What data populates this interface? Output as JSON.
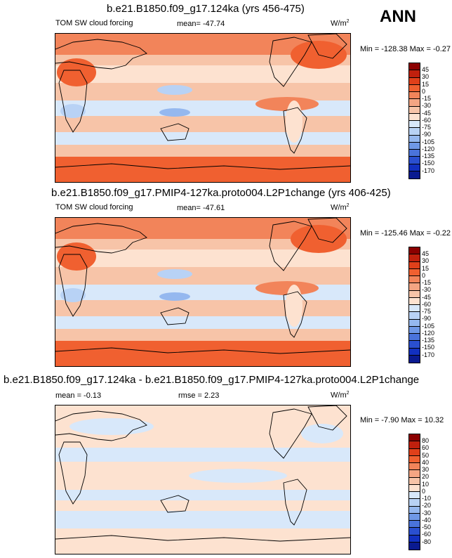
{
  "season": "ANN",
  "panels": [
    {
      "title": "b.e21.B1850.f09_g17.124ka (yrs 456-475)",
      "left_label": "TOM SW cloud forcing",
      "center_label": "mean= -47.74",
      "units_base": "W/m",
      "units_exp": "2",
      "minmax": "Min = -128.38 Max =  -0.27",
      "colorbar": {
        "labels": [
          "45",
          "30",
          "15",
          "0",
          "-15",
          "-30",
          "-45",
          "-60",
          "-75",
          "-90",
          "-105",
          "-120",
          "-135",
          "-150",
          "-170"
        ],
        "colors": [
          "#8b0000",
          "#c0200d",
          "#e0401a",
          "#f06030",
          "#f2845a",
          "#f4a583",
          "#f7c4a8",
          "#fde2d0",
          "#d8e8fa",
          "#b8d2f5",
          "#95b8ef",
          "#6f98e6",
          "#4a73db",
          "#2a4fd0",
          "#1230c0",
          "#0a1a90"
        ]
      }
    },
    {
      "title": "b.e21.B1850.f09_g17.PMIP4-127ka.proto004.L2P1change (yrs 406-425)",
      "left_label": "TOM SW cloud forcing",
      "center_label": "mean= -47.61",
      "units_base": "W/m",
      "units_exp": "2",
      "minmax": "Min = -125.46 Max =  -0.22",
      "colorbar": {
        "labels": [
          "45",
          "30",
          "15",
          "0",
          "-15",
          "-30",
          "-45",
          "-60",
          "-75",
          "-90",
          "-105",
          "-120",
          "-135",
          "-150",
          "-170"
        ],
        "colors": [
          "#8b0000",
          "#c0200d",
          "#e0401a",
          "#f06030",
          "#f2845a",
          "#f4a583",
          "#f7c4a8",
          "#fde2d0",
          "#d8e8fa",
          "#b8d2f5",
          "#95b8ef",
          "#6f98e6",
          "#4a73db",
          "#2a4fd0",
          "#1230c0",
          "#0a1a90"
        ]
      }
    },
    {
      "title": "b.e21.B1850.f09_g17.124ka - b.e21.B1850.f09_g17.PMIP4-127ka.proto004.L2P1change",
      "left_label": "mean =  -0.13",
      "center_label": "rmse =   2.23",
      "units_base": "W/m",
      "units_exp": "2",
      "minmax": "Min =  -7.90 Max =  10.32",
      "colorbar": {
        "labels": [
          "80",
          "60",
          "50",
          "40",
          "30",
          "20",
          "10",
          "0",
          "-10",
          "-20",
          "-30",
          "-40",
          "-50",
          "-60",
          "-80"
        ],
        "colors": [
          "#8b0000",
          "#c0200d",
          "#e0401a",
          "#f06030",
          "#f2845a",
          "#f4a583",
          "#f7c4a8",
          "#fde2d0",
          "#d8e8fa",
          "#b8d2f5",
          "#95b8ef",
          "#6f98e6",
          "#4a73db",
          "#2a4fd0",
          "#1230c0",
          "#0a1a90"
        ]
      }
    }
  ]
}
